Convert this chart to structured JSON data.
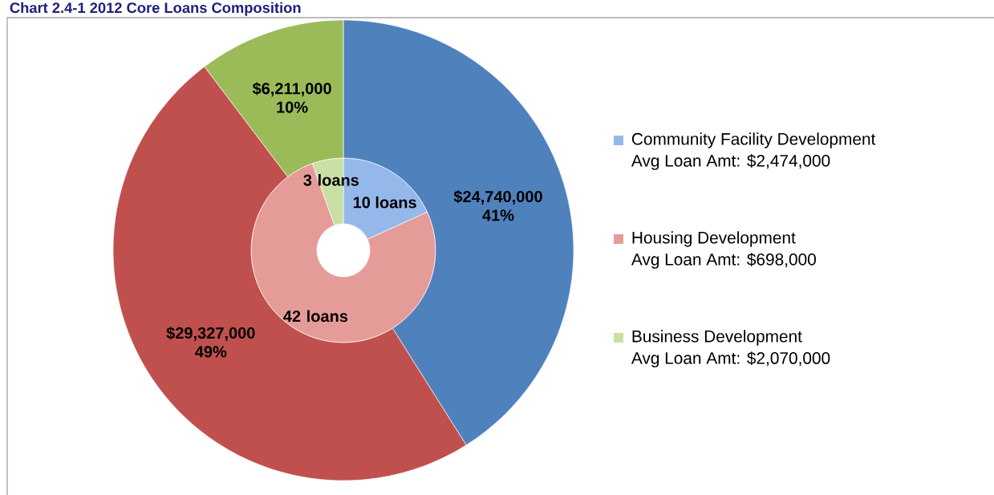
{
  "chart_data": {
    "type": "donut",
    "title": "Chart 2.4-1 2012 Core Loans Composition",
    "categories": [
      "Community Facility Development",
      "Housing Development",
      "Business Development"
    ],
    "series": [
      {
        "values": [
          24740000,
          29327000,
          6211000
        ],
        "colors": [
          "#4f81bd",
          "#c0504d",
          "#9bbb59"
        ],
        "value_labels": [
          "$24,740,000 41%",
          "$29,327,000 49%",
          "$6,211,000 10%"
        ]
      },
      {
        "values": [
          10,
          42,
          3
        ],
        "colors": [
          "#95b8ea",
          "#e59c99",
          "#c9dfa3"
        ],
        "value_labels": [
          "10 loans",
          "42 loans",
          "3 loans"
        ]
      }
    ],
    "annotations": [
      "Avg Loan Amt: $2,474,000",
      "Avg Loan Amt: $698,000",
      "Avg Loan Amt: $2,070,000"
    ],
    "legend": "right"
  }
}
